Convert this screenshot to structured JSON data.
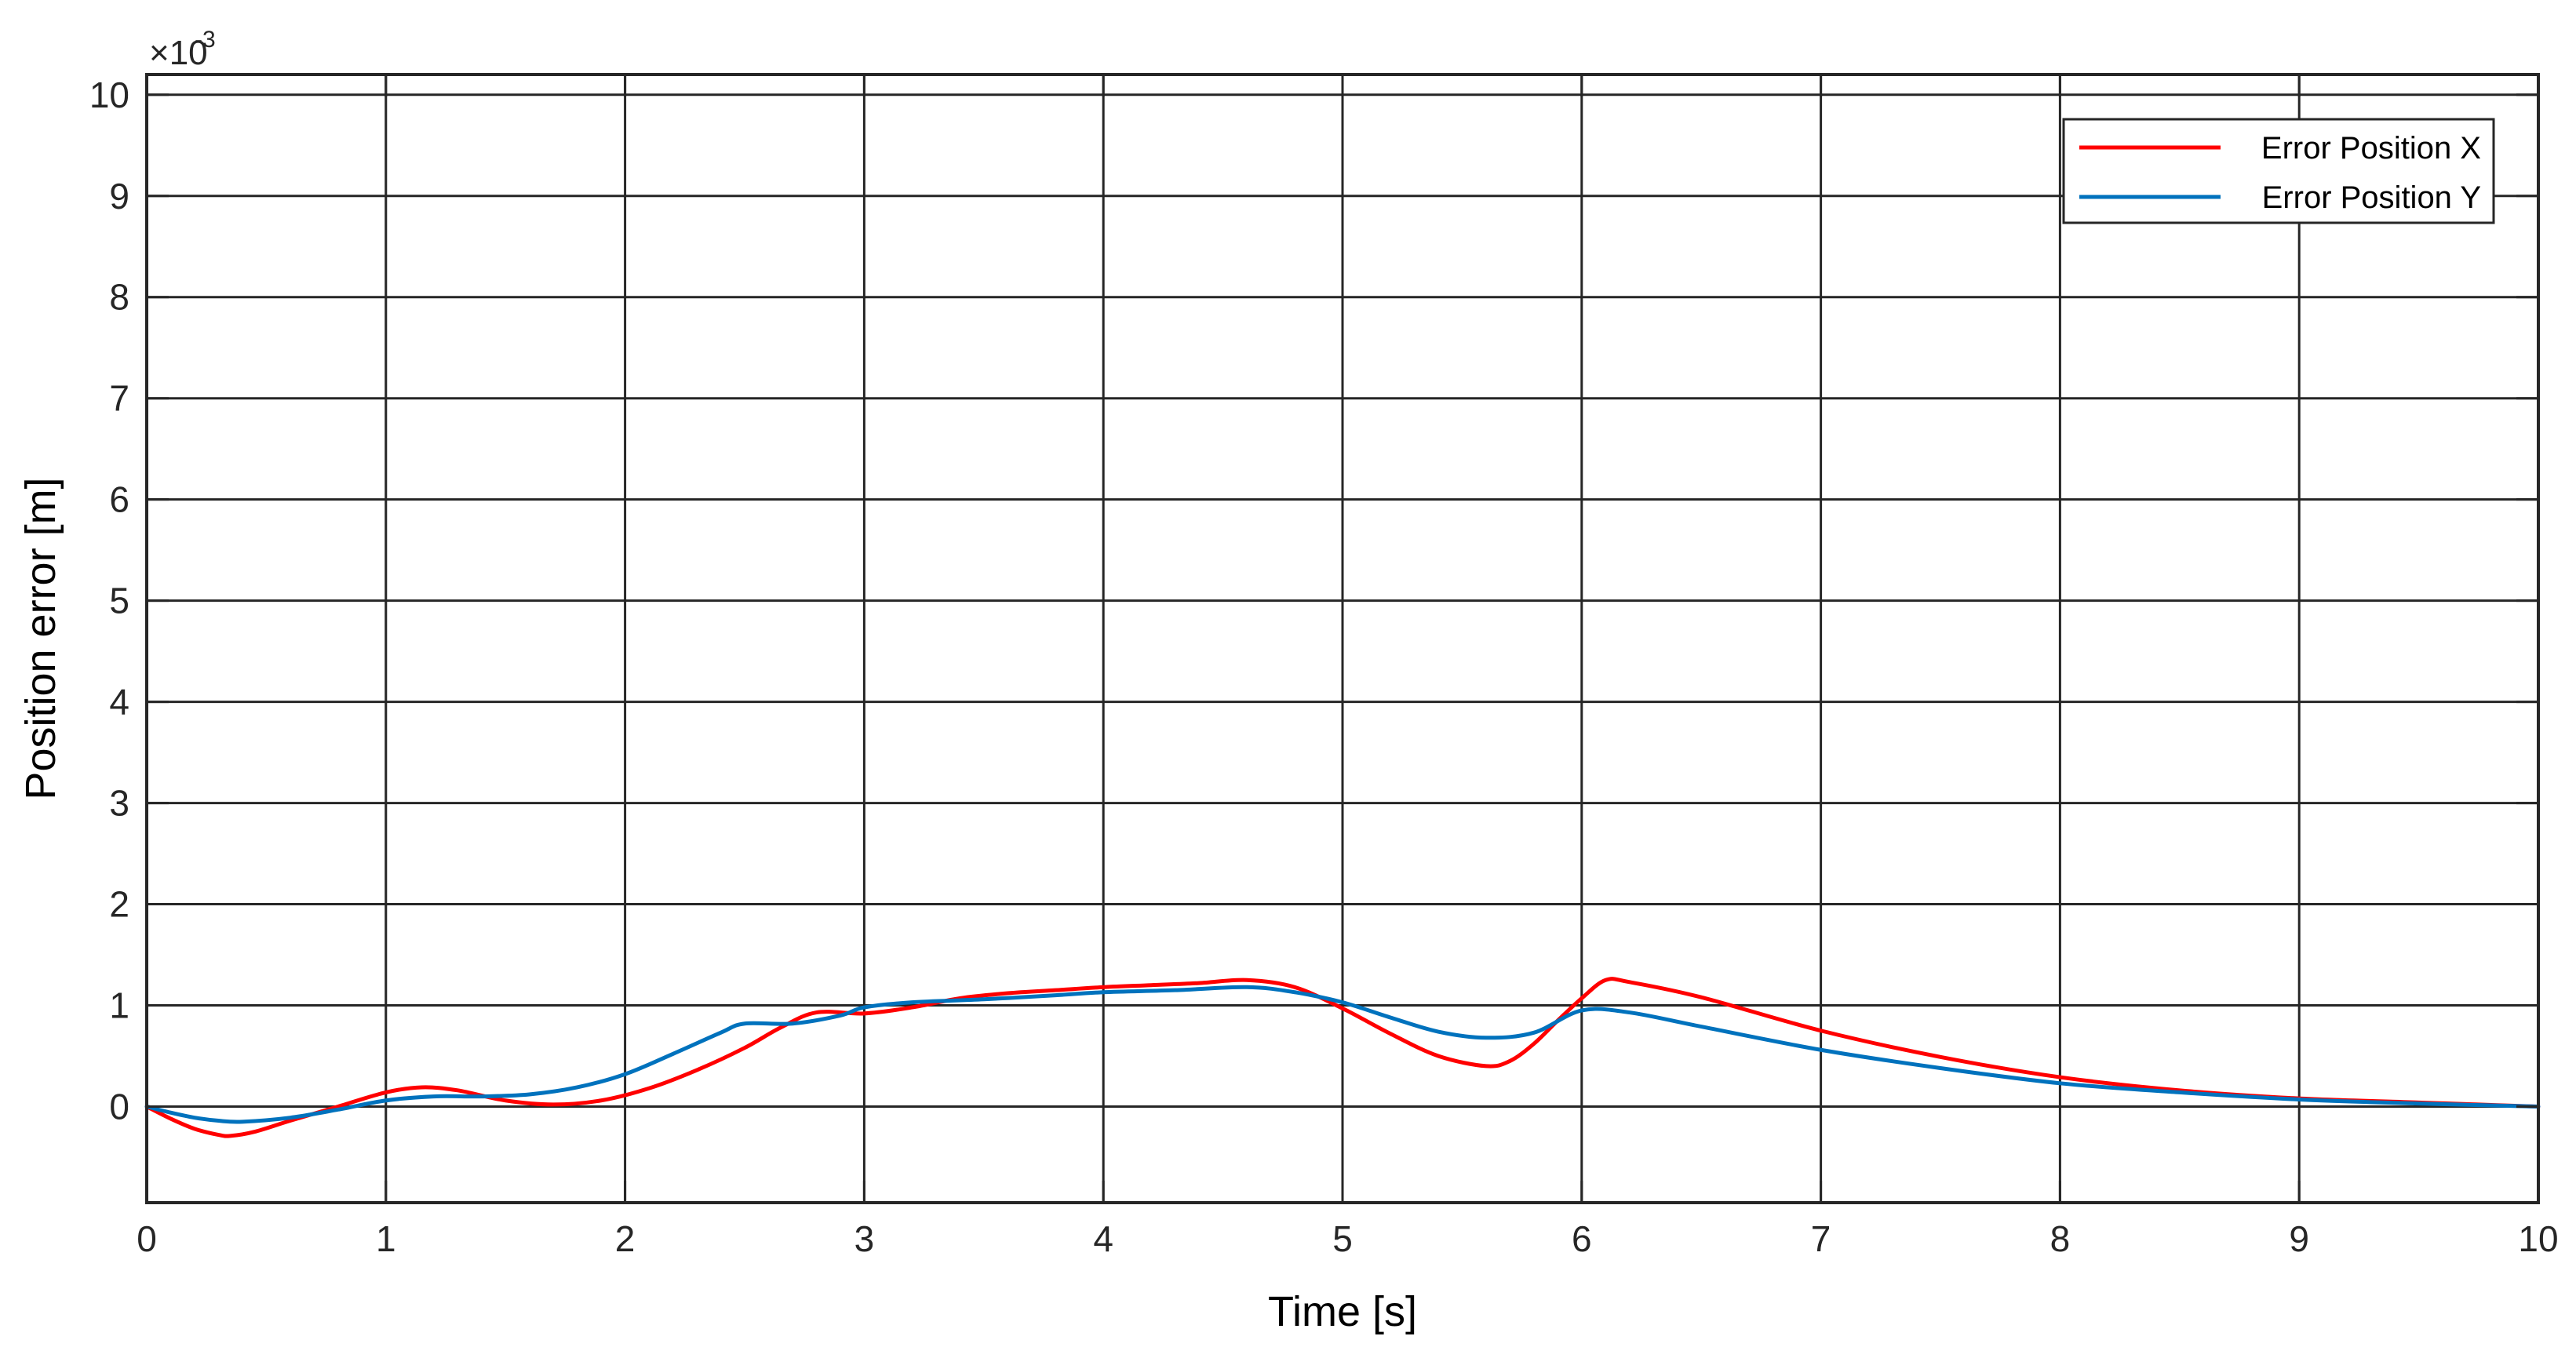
{
  "chart_data": {
    "type": "line",
    "title": "",
    "xlabel": "Time [s]",
    "ylabel": "Position error [m]",
    "xlim": [
      0,
      10
    ],
    "ylim": [
      -0.95,
      10.2
    ],
    "y_scale_factor": "×10",
    "y_scale_exponent": "-3",
    "x_ticks": [
      "0",
      "1",
      "2",
      "3",
      "4",
      "5",
      "6",
      "7",
      "8",
      "9",
      "10"
    ],
    "y_ticks": [
      "0",
      "1",
      "2",
      "3",
      "4",
      "5",
      "6",
      "7",
      "8",
      "9",
      "10"
    ],
    "grid": true,
    "legend_position": "top-right",
    "series": [
      {
        "name": "Error Position X",
        "color": "#ff0000",
        "x": [
          0,
          0.1,
          0.2,
          0.3,
          0.35,
          0.45,
          0.6,
          0.8,
          1.0,
          1.15,
          1.3,
          1.5,
          1.7,
          1.9,
          2.1,
          2.3,
          2.5,
          2.65,
          2.8,
          3.0,
          3.2,
          3.4,
          3.6,
          3.8,
          4.0,
          4.2,
          4.4,
          4.6,
          4.8,
          5.0,
          5.2,
          5.4,
          5.6,
          5.7,
          5.8,
          5.9,
          6.0,
          6.1,
          6.2,
          6.5,
          7.0,
          7.5,
          8.0,
          8.5,
          9.0,
          9.5,
          10.0
        ],
        "y": [
          0.0,
          -0.12,
          -0.22,
          -0.28,
          -0.29,
          -0.25,
          -0.14,
          0.0,
          0.14,
          0.19,
          0.16,
          0.06,
          0.02,
          0.06,
          0.18,
          0.36,
          0.58,
          0.78,
          0.93,
          0.92,
          0.98,
          1.07,
          1.12,
          1.15,
          1.18,
          1.2,
          1.22,
          1.25,
          1.18,
          0.97,
          0.72,
          0.5,
          0.4,
          0.45,
          0.62,
          0.85,
          1.07,
          1.25,
          1.23,
          1.08,
          0.75,
          0.49,
          0.29,
          0.16,
          0.08,
          0.04,
          0.0
        ]
      },
      {
        "name": "Error Position Y",
        "color": "#0072bd",
        "x": [
          0,
          0.1,
          0.2,
          0.3,
          0.4,
          0.6,
          0.8,
          1.0,
          1.2,
          1.4,
          1.6,
          1.8,
          2.0,
          2.2,
          2.4,
          2.5,
          2.7,
          2.9,
          3.0,
          3.2,
          3.5,
          3.8,
          4.0,
          4.3,
          4.6,
          4.8,
          5.0,
          5.2,
          5.4,
          5.6,
          5.8,
          6.0,
          6.2,
          6.5,
          7.0,
          7.5,
          8.0,
          8.5,
          9.0,
          9.5,
          10.0
        ],
        "y": [
          0.0,
          -0.06,
          -0.11,
          -0.14,
          -0.15,
          -0.11,
          -0.03,
          0.06,
          0.1,
          0.1,
          0.12,
          0.19,
          0.32,
          0.52,
          0.73,
          0.82,
          0.82,
          0.9,
          0.98,
          1.03,
          1.06,
          1.1,
          1.13,
          1.15,
          1.18,
          1.13,
          1.03,
          0.88,
          0.74,
          0.68,
          0.73,
          0.95,
          0.93,
          0.79,
          0.56,
          0.38,
          0.23,
          0.14,
          0.07,
          0.03,
          0.0
        ]
      }
    ]
  }
}
